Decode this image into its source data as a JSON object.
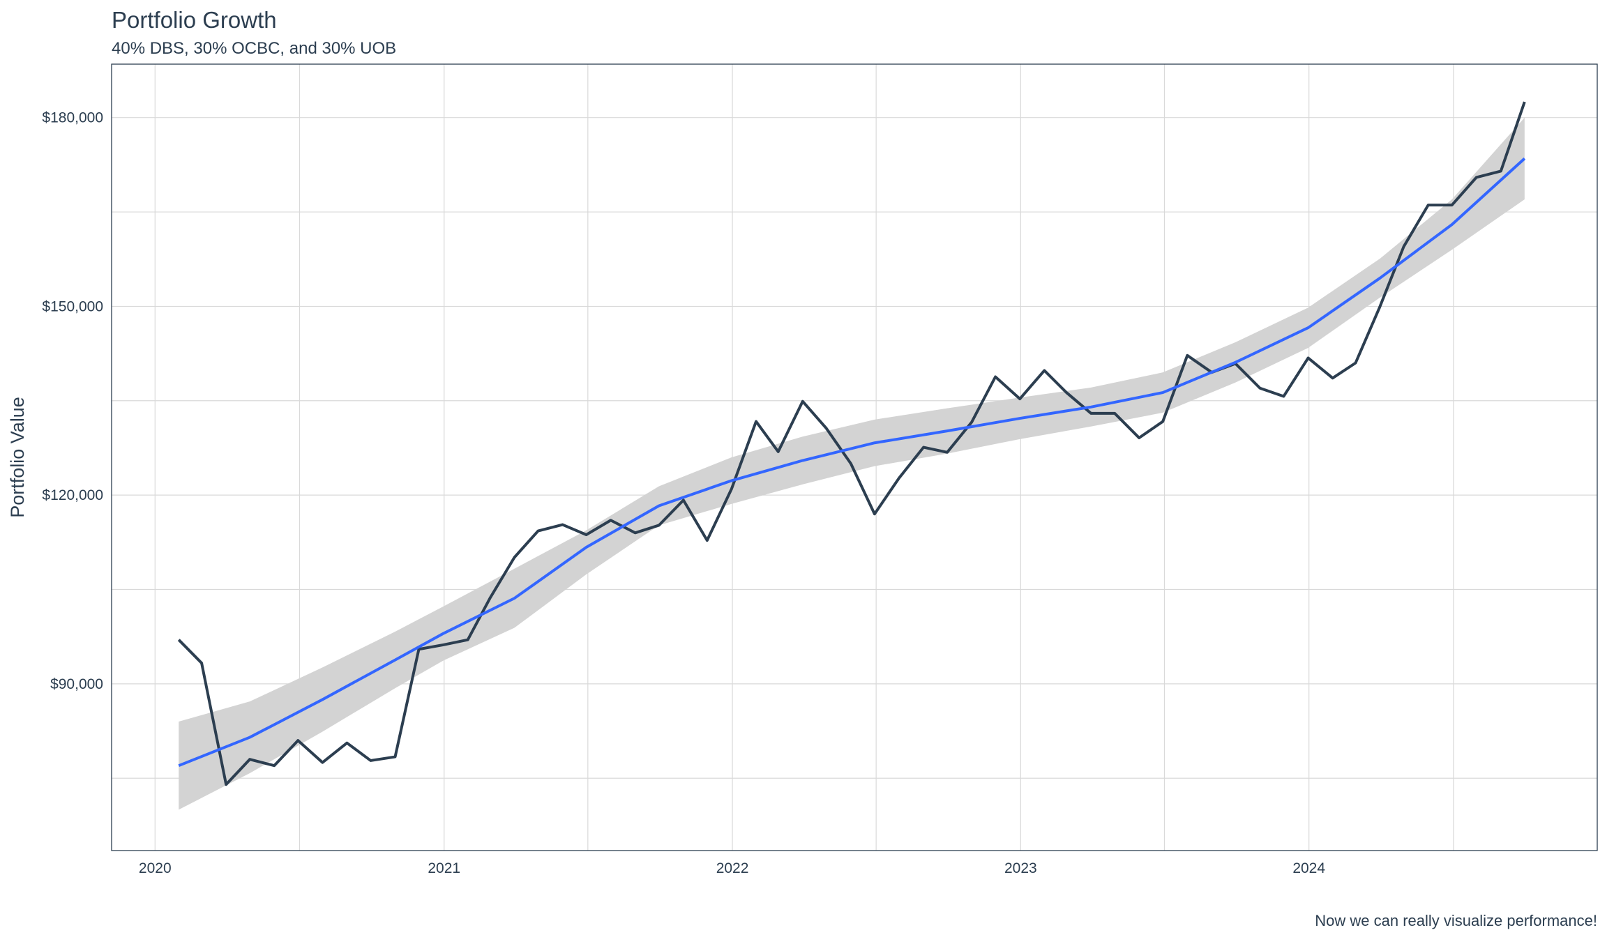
{
  "chart_data": {
    "type": "line",
    "title": "Portfolio Growth",
    "subtitle": "40% DBS, 30% OCBC, and 30% UOB",
    "caption": "Now we can really visualize performance!",
    "xlabel": "",
    "ylabel": "Portfolio Value",
    "x_ticks": [
      "2020",
      "2021",
      "2022",
      "2023",
      "2024"
    ],
    "y_ticks": [
      "$90,000",
      "$120,000",
      "$150,000",
      "$180,000"
    ],
    "y_tick_values": [
      90000,
      120000,
      150000,
      180000
    ],
    "xlim": [
      "2019-11-07",
      "2024-12-31"
    ],
    "ylim": [
      63500,
      188500
    ],
    "grid": true,
    "colors": {
      "line": "#2c3e50",
      "smooth": "#3366ff",
      "band": "#d3d3d3",
      "grid": "#d9d9d9",
      "panel_border": "#2c3e50"
    },
    "series": [
      {
        "x": [
          "2020-01-31",
          "2020-02-29",
          "2020-03-31",
          "2020-04-30",
          "2020-05-31",
          "2020-06-30",
          "2020-07-31",
          "2020-08-31",
          "2020-09-30",
          "2020-10-31",
          "2020-11-30",
          "2020-12-31",
          "2021-01-31",
          "2021-02-28",
          "2021-03-31",
          "2021-04-30",
          "2021-05-31",
          "2021-06-30",
          "2021-07-31",
          "2021-08-31",
          "2021-09-30",
          "2021-10-31",
          "2021-11-30",
          "2021-12-31",
          "2022-01-31",
          "2022-02-28",
          "2022-03-31",
          "2022-04-30",
          "2022-05-31",
          "2022-06-30",
          "2022-07-31",
          "2022-08-31",
          "2022-09-30",
          "2022-10-31",
          "2022-11-30",
          "2022-12-31",
          "2023-01-31",
          "2023-02-28",
          "2023-03-31",
          "2023-04-30",
          "2023-05-31",
          "2023-06-30",
          "2023-07-31",
          "2023-08-31",
          "2023-09-30",
          "2023-10-31",
          "2023-11-30",
          "2023-12-31",
          "2024-01-31",
          "2024-02-29",
          "2024-03-31",
          "2024-04-30",
          "2024-05-31",
          "2024-06-30",
          "2024-07-31",
          "2024-08-31",
          "2024-09-30"
        ],
        "values": [
          97000,
          93300,
          74000,
          78000,
          77000,
          81000,
          77500,
          80600,
          77800,
          78400,
          95500,
          96200,
          97000,
          103600,
          110100,
          114300,
          115300,
          113700,
          116000,
          114000,
          115200,
          119200,
          112800,
          121000,
          131700,
          126900,
          134900,
          130600,
          125000,
          117000,
          122700,
          127600,
          126800,
          131600,
          138800,
          135300,
          139800,
          136300,
          133000,
          133000,
          129100,
          131700,
          142200,
          139500,
          140900,
          137000,
          135700,
          141800,
          138600,
          141000,
          150000,
          159500,
          166100,
          166100,
          170500,
          171500,
          182500
        ]
      },
      {
        "method": "loess",
        "x": [
          "2020-01-31",
          "2020-04-30",
          "2020-07-31",
          "2020-10-31",
          "2020-12-31",
          "2021-03-31",
          "2021-06-30",
          "2021-09-30",
          "2021-12-31",
          "2022-03-31",
          "2022-06-30",
          "2022-09-30",
          "2022-12-31",
          "2023-03-31",
          "2023-06-30",
          "2023-09-30",
          "2023-12-31",
          "2024-03-31",
          "2024-06-30",
          "2024-09-30"
        ],
        "values": [
          77000,
          81500,
          87500,
          93800,
          98000,
          103600,
          111700,
          118300,
          122300,
          125500,
          128300,
          130200,
          132200,
          134000,
          136300,
          141100,
          146600,
          154500,
          163000,
          173500
        ],
        "band_upper": [
          84000,
          87200,
          92600,
          98300,
          102300,
          108300,
          114400,
          121400,
          126000,
          129300,
          132000,
          133800,
          135500,
          137100,
          139500,
          144300,
          149800,
          157600,
          167000,
          180000
        ],
        "band_lower": [
          70000,
          75800,
          82400,
          89300,
          93700,
          98900,
          107400,
          115200,
          118600,
          121700,
          124600,
          126600,
          128900,
          130900,
          133100,
          137900,
          143400,
          151400,
          159000,
          167000
        ]
      }
    ]
  }
}
